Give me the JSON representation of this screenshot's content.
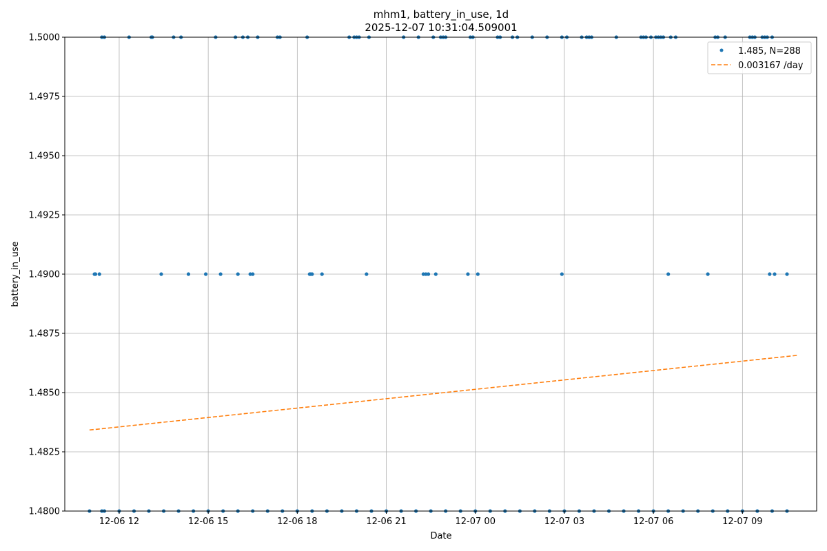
{
  "title_line1": "mhm1, battery_in_use, 1d",
  "title_line2": "2025-12-07 10:31:04.509001",
  "chart_data": {
    "type": "scatter",
    "title": "mhm1, battery_in_use, 1d",
    "subtitle": "2025-12-07 10:31:04.509001",
    "xlabel": "Date",
    "ylabel": "battery_in_use",
    "x_range": [
      "2025-12-06 10:10",
      "2025-12-07 11:30"
    ],
    "ylim": [
      1.48,
      1.5
    ],
    "y_ticks": [
      "1.4800",
      "1.4825",
      "1.4850",
      "1.4875",
      "1.4900",
      "1.4925",
      "1.4950",
      "1.4975",
      "1.5000"
    ],
    "x_ticks": [
      {
        "t": "2025-12-06 12:00",
        "label": "12-06 12"
      },
      {
        "t": "2025-12-06 15:00",
        "label": "12-06 15"
      },
      {
        "t": "2025-12-06 18:00",
        "label": "12-06 18"
      },
      {
        "t": "2025-12-06 21:00",
        "label": "12-06 21"
      },
      {
        "t": "2025-12-07 00:00",
        "label": "12-07 00"
      },
      {
        "t": "2025-12-07 03:00",
        "label": "12-07 03"
      },
      {
        "t": "2025-12-07 06:00",
        "label": "12-07 06"
      },
      {
        "t": "2025-12-07 09:00",
        "label": "12-07 09"
      }
    ],
    "grid": true,
    "legend_position": "top-right",
    "series": [
      {
        "name": "1.485, N=288",
        "kind": "scatter",
        "color": "#1f77b4",
        "points": [
          {
            "x": "2025-12-06 11:10",
            "y": 1.49
          },
          {
            "x": "2025-12-06 11:12",
            "y": 1.49
          },
          {
            "x": "2025-12-06 11:20",
            "y": 1.49
          },
          {
            "x": "2025-12-06 13:25",
            "y": 1.49
          },
          {
            "x": "2025-12-06 14:20",
            "y": 1.49
          },
          {
            "x": "2025-12-06 14:55",
            "y": 1.49
          },
          {
            "x": "2025-12-06 15:25",
            "y": 1.49
          },
          {
            "x": "2025-12-06 16:00",
            "y": 1.49
          },
          {
            "x": "2025-12-06 16:25",
            "y": 1.49
          },
          {
            "x": "2025-12-06 16:30",
            "y": 1.49
          },
          {
            "x": "2025-12-06 18:25",
            "y": 1.49
          },
          {
            "x": "2025-12-06 18:27",
            "y": 1.49
          },
          {
            "x": "2025-12-06 18:30",
            "y": 1.49
          },
          {
            "x": "2025-12-06 18:50",
            "y": 1.49
          },
          {
            "x": "2025-12-06 20:20",
            "y": 1.49
          },
          {
            "x": "2025-12-06 22:15",
            "y": 1.49
          },
          {
            "x": "2025-12-06 22:20",
            "y": 1.49
          },
          {
            "x": "2025-12-06 22:25",
            "y": 1.49
          },
          {
            "x": "2025-12-06 22:40",
            "y": 1.49
          },
          {
            "x": "2025-12-06 23:45",
            "y": 1.49
          },
          {
            "x": "2025-12-07 00:05",
            "y": 1.49
          },
          {
            "x": "2025-12-07 02:55",
            "y": 1.49
          },
          {
            "x": "2025-12-07 06:30",
            "y": 1.49
          },
          {
            "x": "2025-12-07 07:50",
            "y": 1.49
          },
          {
            "x": "2025-12-07 09:55",
            "y": 1.49
          },
          {
            "x": "2025-12-07 10:05",
            "y": 1.49
          },
          {
            "x": "2025-12-07 10:30",
            "y": 1.49
          },
          {
            "x": "2025-12-06 11:25",
            "y": 1.5
          },
          {
            "x": "2025-12-06 11:30",
            "y": 1.5
          },
          {
            "x": "2025-12-06 12:20",
            "y": 1.5
          },
          {
            "x": "2025-12-06 13:05",
            "y": 1.5
          },
          {
            "x": "2025-12-06 13:07",
            "y": 1.5
          },
          {
            "x": "2025-12-06 13:50",
            "y": 1.5
          },
          {
            "x": "2025-12-06 14:05",
            "y": 1.5
          },
          {
            "x": "2025-12-06 15:15",
            "y": 1.5
          },
          {
            "x": "2025-12-06 15:55",
            "y": 1.5
          },
          {
            "x": "2025-12-06 16:10",
            "y": 1.5
          },
          {
            "x": "2025-12-06 16:20",
            "y": 1.5
          },
          {
            "x": "2025-12-06 16:40",
            "y": 1.5
          },
          {
            "x": "2025-12-06 17:20",
            "y": 1.5
          },
          {
            "x": "2025-12-06 17:25",
            "y": 1.5
          },
          {
            "x": "2025-12-06 18:20",
            "y": 1.5
          },
          {
            "x": "2025-12-06 19:45",
            "y": 1.5
          },
          {
            "x": "2025-12-06 19:55",
            "y": 1.5
          },
          {
            "x": "2025-12-06 20:00",
            "y": 1.5
          },
          {
            "x": "2025-12-06 20:05",
            "y": 1.5
          },
          {
            "x": "2025-12-06 20:25",
            "y": 1.5
          },
          {
            "x": "2025-12-06 21:35",
            "y": 1.5
          },
          {
            "x": "2025-12-06 22:05",
            "y": 1.5
          },
          {
            "x": "2025-12-06 22:35",
            "y": 1.5
          },
          {
            "x": "2025-12-06 22:50",
            "y": 1.5
          },
          {
            "x": "2025-12-06 22:55",
            "y": 1.5
          },
          {
            "x": "2025-12-06 23:00",
            "y": 1.5
          },
          {
            "x": "2025-12-06 23:50",
            "y": 1.5
          },
          {
            "x": "2025-12-06 23:55",
            "y": 1.5
          },
          {
            "x": "2025-12-07 00:45",
            "y": 1.5
          },
          {
            "x": "2025-12-07 00:50",
            "y": 1.5
          },
          {
            "x": "2025-12-07 01:15",
            "y": 1.5
          },
          {
            "x": "2025-12-07 01:25",
            "y": 1.5
          },
          {
            "x": "2025-12-07 01:55",
            "y": 1.5
          },
          {
            "x": "2025-12-07 02:25",
            "y": 1.5
          },
          {
            "x": "2025-12-07 02:55",
            "y": 1.5
          },
          {
            "x": "2025-12-07 03:05",
            "y": 1.5
          },
          {
            "x": "2025-12-07 03:35",
            "y": 1.5
          },
          {
            "x": "2025-12-07 03:45",
            "y": 1.5
          },
          {
            "x": "2025-12-07 03:50",
            "y": 1.5
          },
          {
            "x": "2025-12-07 03:55",
            "y": 1.5
          },
          {
            "x": "2025-12-07 04:45",
            "y": 1.5
          },
          {
            "x": "2025-12-07 05:35",
            "y": 1.5
          },
          {
            "x": "2025-12-07 05:40",
            "y": 1.5
          },
          {
            "x": "2025-12-07 05:45",
            "y": 1.5
          },
          {
            "x": "2025-12-07 05:55",
            "y": 1.5
          },
          {
            "x": "2025-12-07 06:05",
            "y": 1.5
          },
          {
            "x": "2025-12-07 06:10",
            "y": 1.5
          },
          {
            "x": "2025-12-07 06:15",
            "y": 1.5
          },
          {
            "x": "2025-12-07 06:20",
            "y": 1.5
          },
          {
            "x": "2025-12-07 06:35",
            "y": 1.5
          },
          {
            "x": "2025-12-07 06:45",
            "y": 1.5
          },
          {
            "x": "2025-12-07 08:05",
            "y": 1.5
          },
          {
            "x": "2025-12-07 08:10",
            "y": 1.5
          },
          {
            "x": "2025-12-07 08:25",
            "y": 1.5
          },
          {
            "x": "2025-12-07 09:15",
            "y": 1.5
          },
          {
            "x": "2025-12-07 09:20",
            "y": 1.5
          },
          {
            "x": "2025-12-07 09:25",
            "y": 1.5
          },
          {
            "x": "2025-12-07 09:40",
            "y": 1.5
          },
          {
            "x": "2025-12-07 09:45",
            "y": 1.5
          },
          {
            "x": "2025-12-07 09:50",
            "y": 1.5
          },
          {
            "x": "2025-12-07 10:00",
            "y": 1.5
          },
          {
            "x": "2025-12-06 11:00",
            "y": 1.48
          },
          {
            "x": "2025-12-06 11:25",
            "y": 1.48
          },
          {
            "x": "2025-12-06 11:30",
            "y": 1.48
          },
          {
            "x": "2025-12-06 12:00",
            "y": 1.48
          },
          {
            "x": "2025-12-06 12:30",
            "y": 1.48
          },
          {
            "x": "2025-12-06 13:00",
            "y": 1.48
          },
          {
            "x": "2025-12-06 13:30",
            "y": 1.48
          },
          {
            "x": "2025-12-06 14:00",
            "y": 1.48
          },
          {
            "x": "2025-12-06 14:30",
            "y": 1.48
          },
          {
            "x": "2025-12-06 15:00",
            "y": 1.48
          },
          {
            "x": "2025-12-06 15:30",
            "y": 1.48
          },
          {
            "x": "2025-12-06 16:00",
            "y": 1.48
          },
          {
            "x": "2025-12-06 16:30",
            "y": 1.48
          },
          {
            "x": "2025-12-06 17:00",
            "y": 1.48
          },
          {
            "x": "2025-12-06 17:30",
            "y": 1.48
          },
          {
            "x": "2025-12-06 18:00",
            "y": 1.48
          },
          {
            "x": "2025-12-06 18:30",
            "y": 1.48
          },
          {
            "x": "2025-12-06 19:00",
            "y": 1.48
          },
          {
            "x": "2025-12-06 19:30",
            "y": 1.48
          },
          {
            "x": "2025-12-06 20:00",
            "y": 1.48
          },
          {
            "x": "2025-12-06 20:30",
            "y": 1.48
          },
          {
            "x": "2025-12-06 21:00",
            "y": 1.48
          },
          {
            "x": "2025-12-06 21:30",
            "y": 1.48
          },
          {
            "x": "2025-12-06 22:00",
            "y": 1.48
          },
          {
            "x": "2025-12-06 22:30",
            "y": 1.48
          },
          {
            "x": "2025-12-06 23:00",
            "y": 1.48
          },
          {
            "x": "2025-12-06 23:30",
            "y": 1.48
          },
          {
            "x": "2025-12-07 00:00",
            "y": 1.48
          },
          {
            "x": "2025-12-07 00:30",
            "y": 1.48
          },
          {
            "x": "2025-12-07 01:00",
            "y": 1.48
          },
          {
            "x": "2025-12-07 01:30",
            "y": 1.48
          },
          {
            "x": "2025-12-07 02:00",
            "y": 1.48
          },
          {
            "x": "2025-12-07 02:30",
            "y": 1.48
          },
          {
            "x": "2025-12-07 03:00",
            "y": 1.48
          },
          {
            "x": "2025-12-07 03:30",
            "y": 1.48
          },
          {
            "x": "2025-12-07 04:00",
            "y": 1.48
          },
          {
            "x": "2025-12-07 04:30",
            "y": 1.48
          },
          {
            "x": "2025-12-07 05:00",
            "y": 1.48
          },
          {
            "x": "2025-12-07 05:30",
            "y": 1.48
          },
          {
            "x": "2025-12-07 06:00",
            "y": 1.48
          },
          {
            "x": "2025-12-07 06:30",
            "y": 1.48
          },
          {
            "x": "2025-12-07 07:00",
            "y": 1.48
          },
          {
            "x": "2025-12-07 07:30",
            "y": 1.48
          },
          {
            "x": "2025-12-07 08:00",
            "y": 1.48
          },
          {
            "x": "2025-12-07 08:30",
            "y": 1.48
          },
          {
            "x": "2025-12-07 09:00",
            "y": 1.48
          },
          {
            "x": "2025-12-07 09:30",
            "y": 1.48
          },
          {
            "x": "2025-12-07 10:00",
            "y": 1.48
          },
          {
            "x": "2025-12-07 10:30",
            "y": 1.48
          }
        ]
      },
      {
        "name": "0.003167 /day",
        "kind": "line",
        "style": "dashed",
        "color": "#ff7f0e",
        "points": [
          {
            "x": "2025-12-06 11:00",
            "y": 1.48342
          },
          {
            "x": "2025-12-07 10:50",
            "y": 1.48657
          }
        ]
      }
    ]
  }
}
